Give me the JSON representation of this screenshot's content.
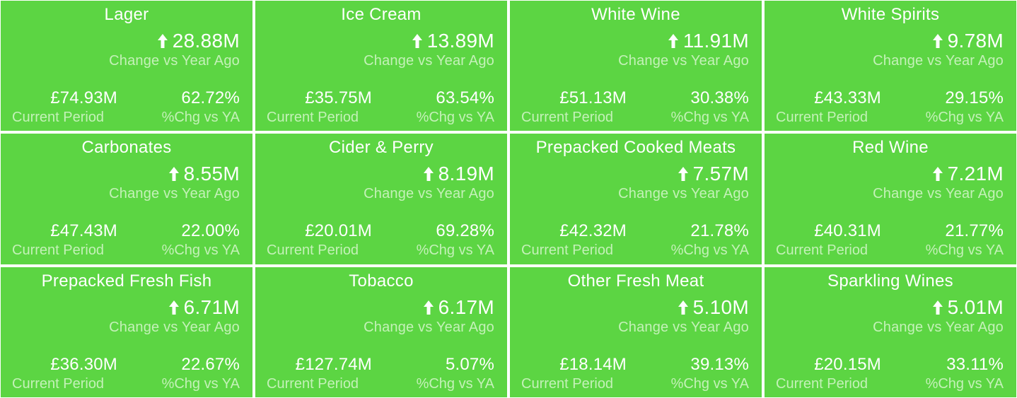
{
  "colors": {
    "tile_background": "#5cd543",
    "primary_text": "#ffffff",
    "secondary_text": "#c4f1b8",
    "separator": "#ffffff"
  },
  "icons": {
    "change_indicator": "up-arrow-icon"
  },
  "labels": {
    "change": "Change vs Year Ago",
    "current": "Current Period",
    "pct": "%Chg vs YA"
  },
  "tiles": [
    {
      "title": "Lager",
      "change": "28.88M",
      "current": "£74.93M",
      "pct": "62.72%"
    },
    {
      "title": "Ice Cream",
      "change": "13.89M",
      "current": "£35.75M",
      "pct": "63.54%"
    },
    {
      "title": "White Wine",
      "change": "11.91M",
      "current": "£51.13M",
      "pct": "30.38%"
    },
    {
      "title": "White Spirits",
      "change": "9.78M",
      "current": "£43.33M",
      "pct": "29.15%"
    },
    {
      "title": "Carbonates",
      "change": "8.55M",
      "current": "£47.43M",
      "pct": "22.00%"
    },
    {
      "title": "Cider & Perry",
      "change": "8.19M",
      "current": "£20.01M",
      "pct": "69.28%"
    },
    {
      "title": "Prepacked Cooked Meats",
      "change": "7.57M",
      "current": "£42.32M",
      "pct": "21.78%"
    },
    {
      "title": "Red Wine",
      "change": "7.21M",
      "current": "£40.31M",
      "pct": "21.77%"
    },
    {
      "title": "Prepacked Fresh Fish",
      "change": "6.71M",
      "current": "£36.30M",
      "pct": "22.67%"
    },
    {
      "title": "Tobacco",
      "change": "6.17M",
      "current": "£127.74M",
      "pct": "5.07%"
    },
    {
      "title": "Other Fresh Meat",
      "change": "5.10M",
      "current": "£18.14M",
      "pct": "39.13%"
    },
    {
      "title": "Sparkling Wines",
      "change": "5.01M",
      "current": "£20.15M",
      "pct": "33.11%"
    }
  ]
}
